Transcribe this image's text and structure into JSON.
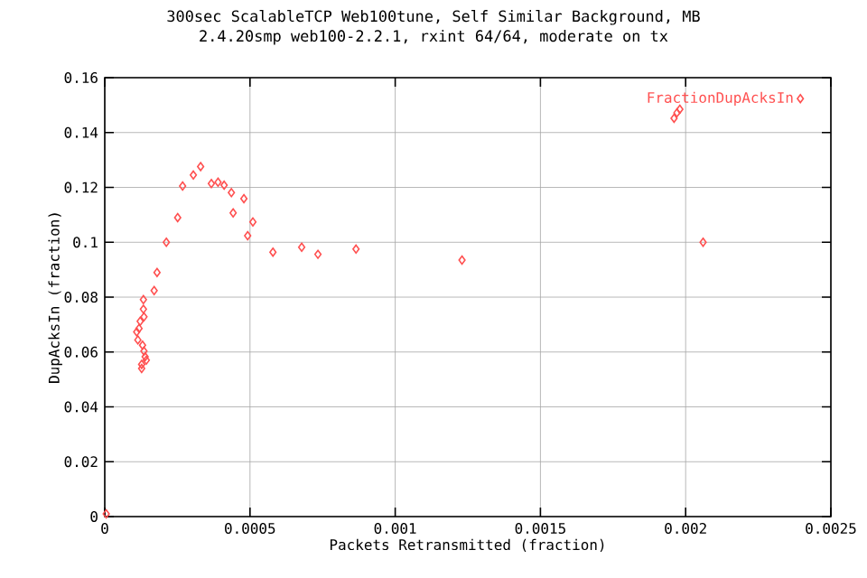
{
  "chart_data": {
    "type": "scatter",
    "title": "300sec  ScalableTCP  Web100tune, Self Similar Background, MB",
    "subtitle": "2.4.20smp web100-2.2.1, rxint 64/64, moderate on tx",
    "xlabel": "Packets Retransmitted (fraction)",
    "ylabel": "DupAcksIn (fraction)",
    "xlim": [
      0,
      0.0025
    ],
    "ylim": [
      0,
      0.16
    ],
    "xticks": [
      0,
      0.0005,
      0.001,
      0.0015,
      0.002,
      0.0025
    ],
    "yticks": [
      0,
      0.02,
      0.04,
      0.06,
      0.08,
      0.1,
      0.12,
      0.14,
      0.16
    ],
    "grid": true,
    "legend": "top right",
    "marker": "diamond",
    "series": [
      {
        "name": "FractionDupAcksIn",
        "color": "#ff5050",
        "x": [
          5e-06,
          0.000127,
          0.000127,
          0.000143,
          0.000139,
          0.000135,
          0.00013,
          0.000114,
          0.00011,
          0.000118,
          0.000122,
          0.000135,
          0.000133,
          0.000133,
          0.00017,
          0.00018,
          0.000212,
          0.000251,
          0.000268,
          0.000305,
          0.00033,
          0.000367,
          0.00039,
          0.000411,
          0.000436,
          0.000442,
          0.000479,
          0.000492,
          0.00051,
          0.000579,
          0.000678,
          0.000734,
          0.000865,
          0.00123,
          0.00206,
          0.00196,
          0.00197,
          0.00198
        ],
        "values": [
          0.001,
          0.054,
          0.0555,
          0.057,
          0.0583,
          0.0603,
          0.0625,
          0.0644,
          0.0673,
          0.0686,
          0.0712,
          0.0728,
          0.0756,
          0.0791,
          0.0824,
          0.089,
          0.1,
          0.109,
          0.1205,
          0.1245,
          0.1276,
          0.1214,
          0.1219,
          0.1208,
          0.1181,
          0.1107,
          0.1159,
          0.1024,
          0.1074,
          0.0964,
          0.0982,
          0.0956,
          0.0975,
          0.0935,
          0.1,
          0.1452,
          0.1472,
          0.1485
        ]
      }
    ]
  }
}
